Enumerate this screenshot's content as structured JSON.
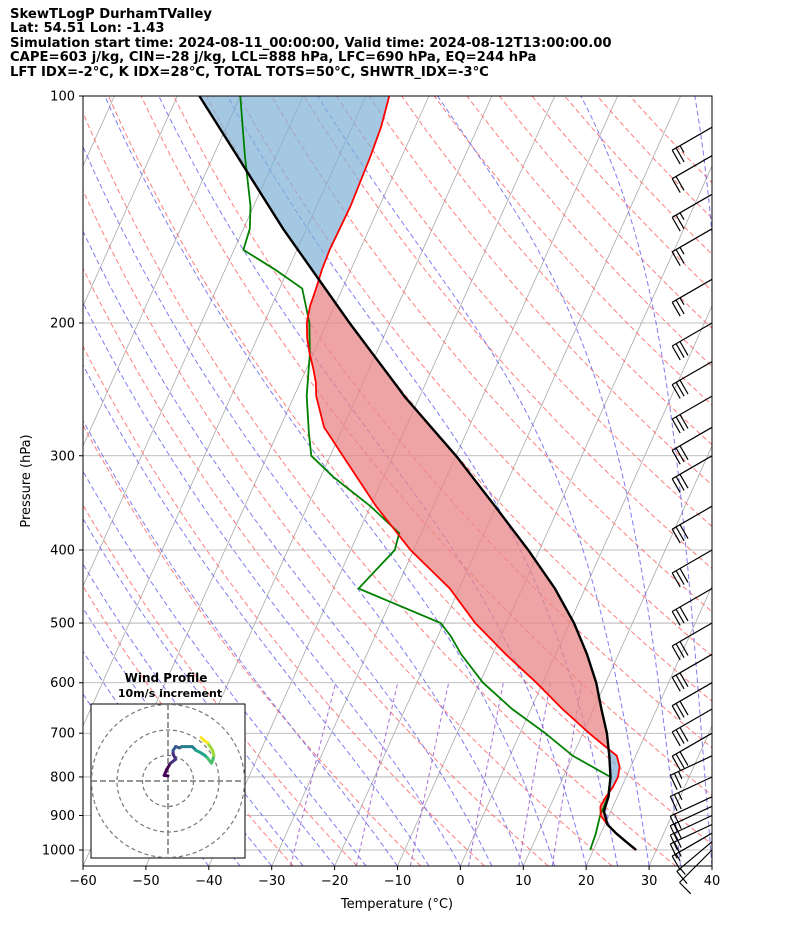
{
  "header": {
    "title": "SkewTLogP DurhamTValley",
    "location": "Lat: 54.51   Lon: -1.43",
    "times": "Simulation start time: 2024-08-11_00:00:00, Valid time: 2024-08-12T13:00:00.00",
    "params": "CAPE=603 j/kg, CIN=-28 j/kg, LCL=888 hPa, LFC=690 hPa, EQ=244 hPa",
    "indices": "LFT IDX=-2°C, K IDX=28°C, TOTAL TOTS=50°C, SHWTR_IDX=-3°C"
  },
  "chart_data": {
    "type": "line",
    "subtype": "skew-t log-p",
    "xlabel": "Temperature (°C)",
    "ylabel": "Pressure (hPa)",
    "xlim": [
      -60,
      40
    ],
    "ylim": [
      1050,
      100
    ],
    "y_scale": "log",
    "grid": true,
    "x_ticks": [
      -60,
      -50,
      -40,
      -30,
      -20,
      -10,
      0,
      10,
      20,
      30,
      40
    ],
    "x_tick_labels": [
      "−60",
      "−50",
      "−40",
      "−30",
      "−20",
      "−10",
      "0",
      "10",
      "20",
      "30",
      "40"
    ],
    "y_ticks": [
      1000,
      900,
      800,
      700,
      600,
      500,
      400,
      300,
      200,
      100
    ],
    "y_tick_labels": [
      "1000",
      "900",
      "800",
      "700",
      "600",
      "500",
      "400",
      "300",
      "200",
      "100"
    ],
    "colors": {
      "temperature": "#ff0000",
      "dewpoint": "#008000",
      "parcel": "#000000",
      "cape_fill": "#e88585",
      "cin_fill": "#7fb1d6",
      "dry_adiabat": "#ff6666",
      "moist_adiabat": "#6666ee",
      "mixing_ratio": "#9955cc",
      "isotherm": "#aaaaaa"
    },
    "series": [
      {
        "key": "temperature",
        "pressure": [
          1000,
          975,
          950,
          925,
          900,
          875,
          850,
          825,
          800,
          775,
          750,
          725,
          700,
          650,
          600,
          550,
          500,
          450,
          400,
          350,
          300,
          275,
          250,
          240,
          230,
          220,
          210,
          200,
          190,
          180,
          170,
          160,
          150,
          140,
          130,
          120,
          110,
          100
        ],
        "values": [
          26.7,
          24.6,
          22.4,
          20.4,
          18.7,
          18.0,
          18.2,
          18.6,
          18.7,
          18.2,
          17.0,
          14.0,
          11.0,
          5.0,
          -1.0,
          -7.9,
          -15.0,
          -21.5,
          -30.5,
          -39.1,
          -48.0,
          -53.0,
          -56.5,
          -57.5,
          -58.9,
          -60.5,
          -62.0,
          -63.2,
          -63.9,
          -64.2,
          -64.6,
          -64.8,
          -64.7,
          -64.6,
          -64.8,
          -65.0,
          -65.4,
          -66.3
        ]
      },
      {
        "key": "dewpoint",
        "pressure": [
          1000,
          950,
          900,
          850,
          800,
          750,
          700,
          650,
          600,
          550,
          520,
          500,
          450,
          400,
          380,
          350,
          320,
          300,
          280,
          250,
          220,
          200,
          180,
          170,
          160,
          150,
          140,
          120,
          100
        ],
        "values": [
          19.5,
          19.2,
          18.6,
          18.5,
          17.5,
          10.0,
          4.0,
          -3.0,
          -9.5,
          -15.0,
          -18.0,
          -20.5,
          -36.0,
          -33.0,
          -33.5,
          -40.0,
          -48.0,
          -53.0,
          -55.0,
          -58.0,
          -60.5,
          -62.8,
          -66.4,
          -72.0,
          -78.5,
          -79.0,
          -80.5,
          -85.0,
          -90.0
        ]
      },
      {
        "key": "parcel",
        "pressure": [
          1000,
          975,
          950,
          925,
          900,
          888,
          850,
          800,
          750,
          700,
          650,
          600,
          550,
          500,
          450,
          400,
          350,
          300,
          250,
          244,
          200,
          150,
          100
        ],
        "values": [
          26.8,
          24.6,
          22.4,
          20.4,
          19.4,
          18.9,
          18.6,
          17.5,
          15.8,
          13.8,
          11.2,
          8.5,
          5.0,
          0.7,
          -4.8,
          -11.8,
          -20.2,
          -30.0,
          -42.5,
          -44.0,
          -56.4,
          -73.7,
          -96.5
        ]
      }
    ],
    "wind_barbs": {
      "pressure": [
        1000,
        975,
        950,
        925,
        900,
        875,
        850,
        800,
        750,
        700,
        650,
        600,
        550,
        500,
        450,
        400,
        350,
        300,
        275,
        250,
        225,
        200,
        175,
        150,
        135,
        120,
        110
      ],
      "speed_kt": [
        10,
        15,
        15,
        20,
        20,
        20,
        20,
        25,
        25,
        30,
        30,
        30,
        30,
        30,
        30,
        30,
        30,
        30,
        30,
        30,
        30,
        30,
        25,
        25,
        25,
        20,
        25
      ],
      "direction_deg": [
        225,
        230,
        240,
        245,
        245,
        245,
        245,
        245,
        245,
        240,
        240,
        240,
        240,
        240,
        240,
        240,
        240,
        240,
        240,
        240,
        240,
        240,
        240,
        240,
        240,
        240,
        240
      ]
    },
    "hodograph": {
      "title": "Wind Profile",
      "subtitle": "10m/s increment",
      "rings_ms": [
        10,
        20,
        30
      ],
      "u_ms": [
        0.0,
        -1.5,
        -0.5,
        1.0,
        3.0,
        2.0,
        2.0,
        3.0,
        4.5,
        5.5,
        7.0,
        9.5,
        11.0,
        13.0,
        14.5,
        15.5,
        17.0,
        17.5,
        18.0,
        17.5,
        16.5,
        15.5,
        14.0,
        13.0
      ],
      "v_ms": [
        2.0,
        2.2,
        4.5,
        7.0,
        8.5,
        10.5,
        12.0,
        13.5,
        13.0,
        13.5,
        13.5,
        13.5,
        12.0,
        11.0,
        10.0,
        9.0,
        7.0,
        8.0,
        10.0,
        12.0,
        13.5,
        15.0,
        16.0,
        17.0
      ]
    }
  }
}
